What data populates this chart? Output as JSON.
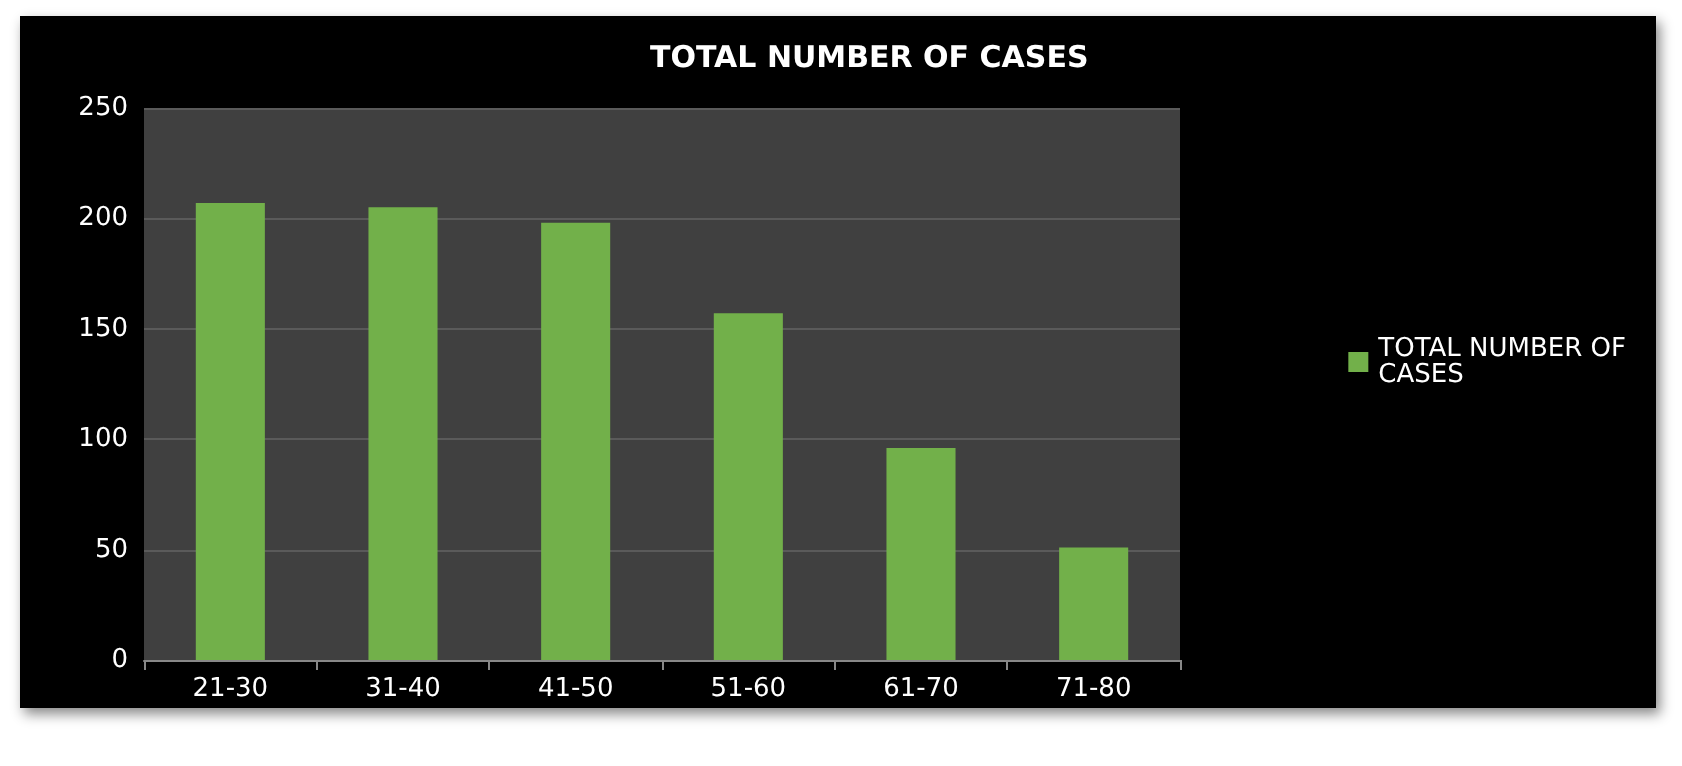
{
  "chart_data": {
    "type": "bar",
    "title": "TOTAL NUMBER OF CASES",
    "categories": [
      "21-30",
      "31-40",
      "41-50",
      "51-60",
      "61-70",
      "71-80"
    ],
    "series": [
      {
        "name": "TOTAL NUMBER OF CASES",
        "color": "#72b04a",
        "values": [
          207,
          205,
          198,
          157,
          96,
          51
        ]
      }
    ],
    "ylim": [
      0,
      250
    ],
    "yticks": [
      0,
      50,
      100,
      150,
      200,
      250
    ],
    "grid": "y",
    "legend": "right"
  }
}
